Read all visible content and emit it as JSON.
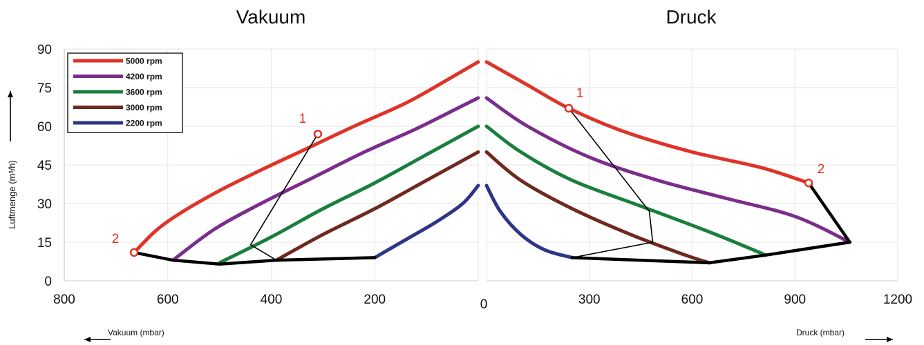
{
  "chart_data": {
    "type": "line",
    "ylabel": "Luftmenge (m³/h)",
    "ylim": [
      0,
      90
    ],
    "yticks": [
      "0",
      "15",
      "30",
      "45",
      "60",
      "75",
      "90"
    ],
    "grid": true,
    "legend_position": "top-left",
    "panels": [
      {
        "title": "Vakuum",
        "axis_label": "Vakuum (mbar)",
        "xlim": [
          800,
          0
        ],
        "xticks": [
          "800",
          "600",
          "400",
          "200"
        ],
        "series": [
          {
            "name": "5000 rpm",
            "color": "#e03328",
            "x": [
              665,
              620,
              570,
              500,
              420,
              335,
              240,
              140,
              60,
              0
            ],
            "y": [
              11,
              20,
              27,
              35,
              43,
              51,
              60,
              69,
              78,
              85
            ]
          },
          {
            "name": "4200 rpm",
            "color": "#7b2d8b",
            "x": [
              590,
              510,
              420,
              320,
              220,
              120,
              40,
              0
            ],
            "y": [
              8,
              20,
              30,
              40,
              50,
              59,
              67,
              71
            ]
          },
          {
            "name": "3600 rpm",
            "color": "#1a7f3d",
            "x": [
              500,
              400,
              300,
              200,
              100,
              0
            ],
            "y": [
              7,
              17,
              28,
              38,
              49,
              60
            ]
          },
          {
            "name": "3000 rpm",
            "color": "#6e2a1e",
            "x": [
              390,
              300,
              200,
              100,
              0
            ],
            "y": [
              8,
              18,
              28,
              39,
              50
            ]
          },
          {
            "name": "2200 rpm",
            "color": "#2e3586",
            "x": [
              200,
              140,
              80,
              30,
              0
            ],
            "y": [
              9,
              16,
              23,
              30,
              37
            ]
          }
        ],
        "envelope": {
          "x": [
            665,
            590,
            500,
            390,
            200
          ],
          "y": [
            11,
            8,
            6.5,
            8,
            9
          ]
        },
        "connector": {
          "x": [
            310,
            440,
            390
          ],
          "y": [
            57,
            14,
            8
          ]
        },
        "markers": [
          {
            "label": "1",
            "x": 310,
            "y": 57
          },
          {
            "label": "2",
            "x": 665,
            "y": 11
          }
        ]
      },
      {
        "title": "Druck",
        "axis_label": "Druck (mbar)",
        "xlim": [
          0,
          1200
        ],
        "xticks": [
          "0",
          "300",
          "600",
          "900",
          "1200"
        ],
        "series": [
          {
            "name": "5000 rpm",
            "color": "#e03328",
            "x": [
              0,
              120,
              240,
              400,
              600,
              800,
              940
            ],
            "y": [
              85,
              76,
              67,
              58,
              50,
              44,
              38
            ]
          },
          {
            "name": "4200 rpm",
            "color": "#7b2d8b",
            "x": [
              0,
              120,
              300,
              500,
              700,
              900,
              1060
            ],
            "y": [
              71,
              60,
              48,
              39,
              32,
              25,
              15
            ]
          },
          {
            "name": "3600 rpm",
            "color": "#1a7f3d",
            "x": [
              0,
              100,
              250,
              450,
              650,
              815
            ],
            "y": [
              60,
              50,
              39,
              29,
              19,
              10
            ]
          },
          {
            "name": "3000 rpm",
            "color": "#6e2a1e",
            "x": [
              0,
              100,
              250,
              420,
              580,
              650
            ],
            "y": [
              50,
              39,
              28,
              18,
              10,
              7
            ]
          },
          {
            "name": "2200 rpm",
            "color": "#2e3586",
            "x": [
              0,
              40,
              100,
              170,
              250
            ],
            "y": [
              37,
              27,
              18,
              12,
              9
            ]
          }
        ],
        "envelope": {
          "x": [
            250,
            650,
            815,
            1060,
            940
          ],
          "y": [
            9,
            7,
            10,
            15,
            38
          ]
        },
        "connector": {
          "x": [
            240,
            475,
            485,
            250
          ],
          "y": [
            67,
            27,
            15,
            9
          ]
        },
        "markers": [
          {
            "label": "1",
            "x": 240,
            "y": 67
          },
          {
            "label": "2",
            "x": 940,
            "y": 38
          }
        ]
      }
    ]
  }
}
